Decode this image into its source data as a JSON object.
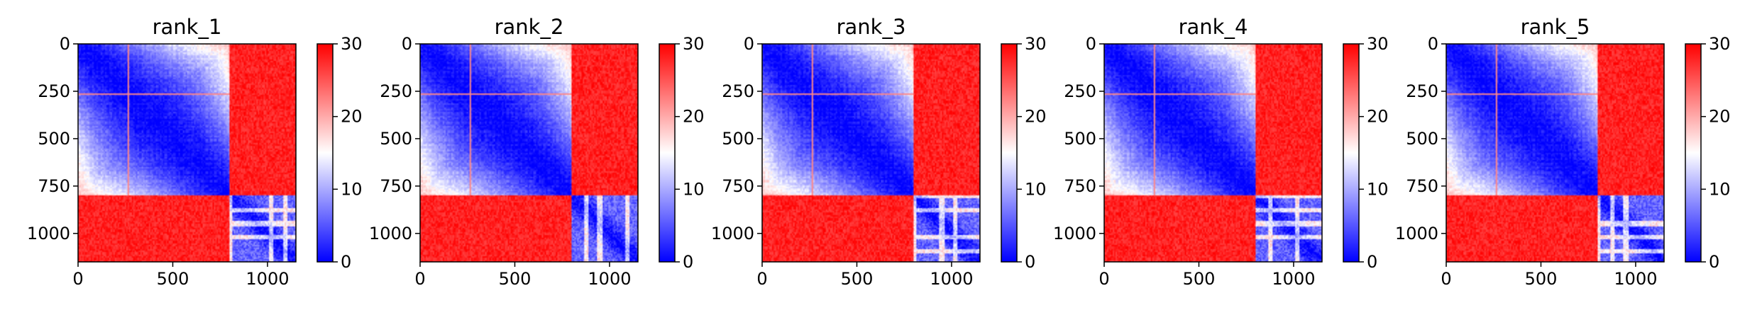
{
  "chart_data": [
    {
      "type": "heatmap",
      "title": "rank_1",
      "matrix_size": 1150,
      "xlim": [
        0,
        1150
      ],
      "ylim": [
        1150,
        0
      ],
      "x_ticks": [
        0,
        500,
        1000
      ],
      "y_ticks": [
        0,
        250,
        500,
        750,
        1000
      ],
      "colorbar": {
        "min": 0,
        "max": 30,
        "ticks": [
          0,
          10,
          20,
          30
        ],
        "colormap": "bwr"
      },
      "blocks": [
        {
          "range": [
            0,
            800
          ],
          "diag": 0,
          "far": 30
        },
        {
          "range": [
            800,
            1150
          ],
          "diag": 0,
          "far": 6
        }
      ],
      "off_block_value": 30,
      "stripe_row": 265
    },
    {
      "type": "heatmap",
      "title": "rank_2",
      "matrix_size": 1150,
      "xlim": [
        0,
        1150
      ],
      "ylim": [
        1150,
        0
      ],
      "x_ticks": [
        0,
        500,
        1000
      ],
      "y_ticks": [
        0,
        250,
        500,
        750,
        1000
      ],
      "colorbar": {
        "min": 0,
        "max": 30,
        "ticks": [
          0,
          10,
          20,
          30
        ],
        "colormap": "bwr"
      },
      "blocks": [
        {
          "range": [
            0,
            800
          ],
          "diag": 0,
          "far": 30
        },
        {
          "range": [
            800,
            1150
          ],
          "diag": 0,
          "far": 6
        }
      ],
      "off_block_value": 30,
      "stripe_row": 265
    },
    {
      "type": "heatmap",
      "title": "rank_3",
      "matrix_size": 1150,
      "xlim": [
        0,
        1150
      ],
      "ylim": [
        1150,
        0
      ],
      "x_ticks": [
        0,
        500,
        1000
      ],
      "y_ticks": [
        0,
        250,
        500,
        750,
        1000
      ],
      "colorbar": {
        "min": 0,
        "max": 30,
        "ticks": [
          0,
          10,
          20,
          30
        ],
        "colormap": "bwr"
      },
      "blocks": [
        {
          "range": [
            0,
            800
          ],
          "diag": 0,
          "far": 30
        },
        {
          "range": [
            800,
            1150
          ],
          "diag": 0,
          "far": 6
        }
      ],
      "off_block_value": 30,
      "stripe_row": 265
    },
    {
      "type": "heatmap",
      "title": "rank_4",
      "matrix_size": 1150,
      "xlim": [
        0,
        1150
      ],
      "ylim": [
        1150,
        0
      ],
      "x_ticks": [
        0,
        500,
        1000
      ],
      "y_ticks": [
        0,
        250,
        500,
        750,
        1000
      ],
      "colorbar": {
        "min": 0,
        "max": 30,
        "ticks": [
          0,
          10,
          20,
          30
        ],
        "colormap": "bwr"
      },
      "blocks": [
        {
          "range": [
            0,
            800
          ],
          "diag": 0,
          "far": 30
        },
        {
          "range": [
            800,
            1150
          ],
          "diag": 0,
          "far": 6
        }
      ],
      "off_block_value": 30,
      "stripe_row": 265
    },
    {
      "type": "heatmap",
      "title": "rank_5",
      "matrix_size": 1150,
      "xlim": [
        0,
        1150
      ],
      "ylim": [
        1150,
        0
      ],
      "x_ticks": [
        0,
        500,
        1000
      ],
      "y_ticks": [
        0,
        250,
        500,
        750,
        1000
      ],
      "colorbar": {
        "min": 0,
        "max": 30,
        "ticks": [
          0,
          10,
          20,
          30
        ],
        "colormap": "bwr"
      },
      "blocks": [
        {
          "range": [
            0,
            800
          ],
          "diag": 0,
          "far": 30
        },
        {
          "range": [
            800,
            1150
          ],
          "diag": 0,
          "far": 6
        }
      ],
      "off_block_value": 30,
      "stripe_row": 265
    }
  ],
  "colors": {
    "low": "#0000ff",
    "mid": "#ffffff",
    "high": "#ff0000"
  }
}
